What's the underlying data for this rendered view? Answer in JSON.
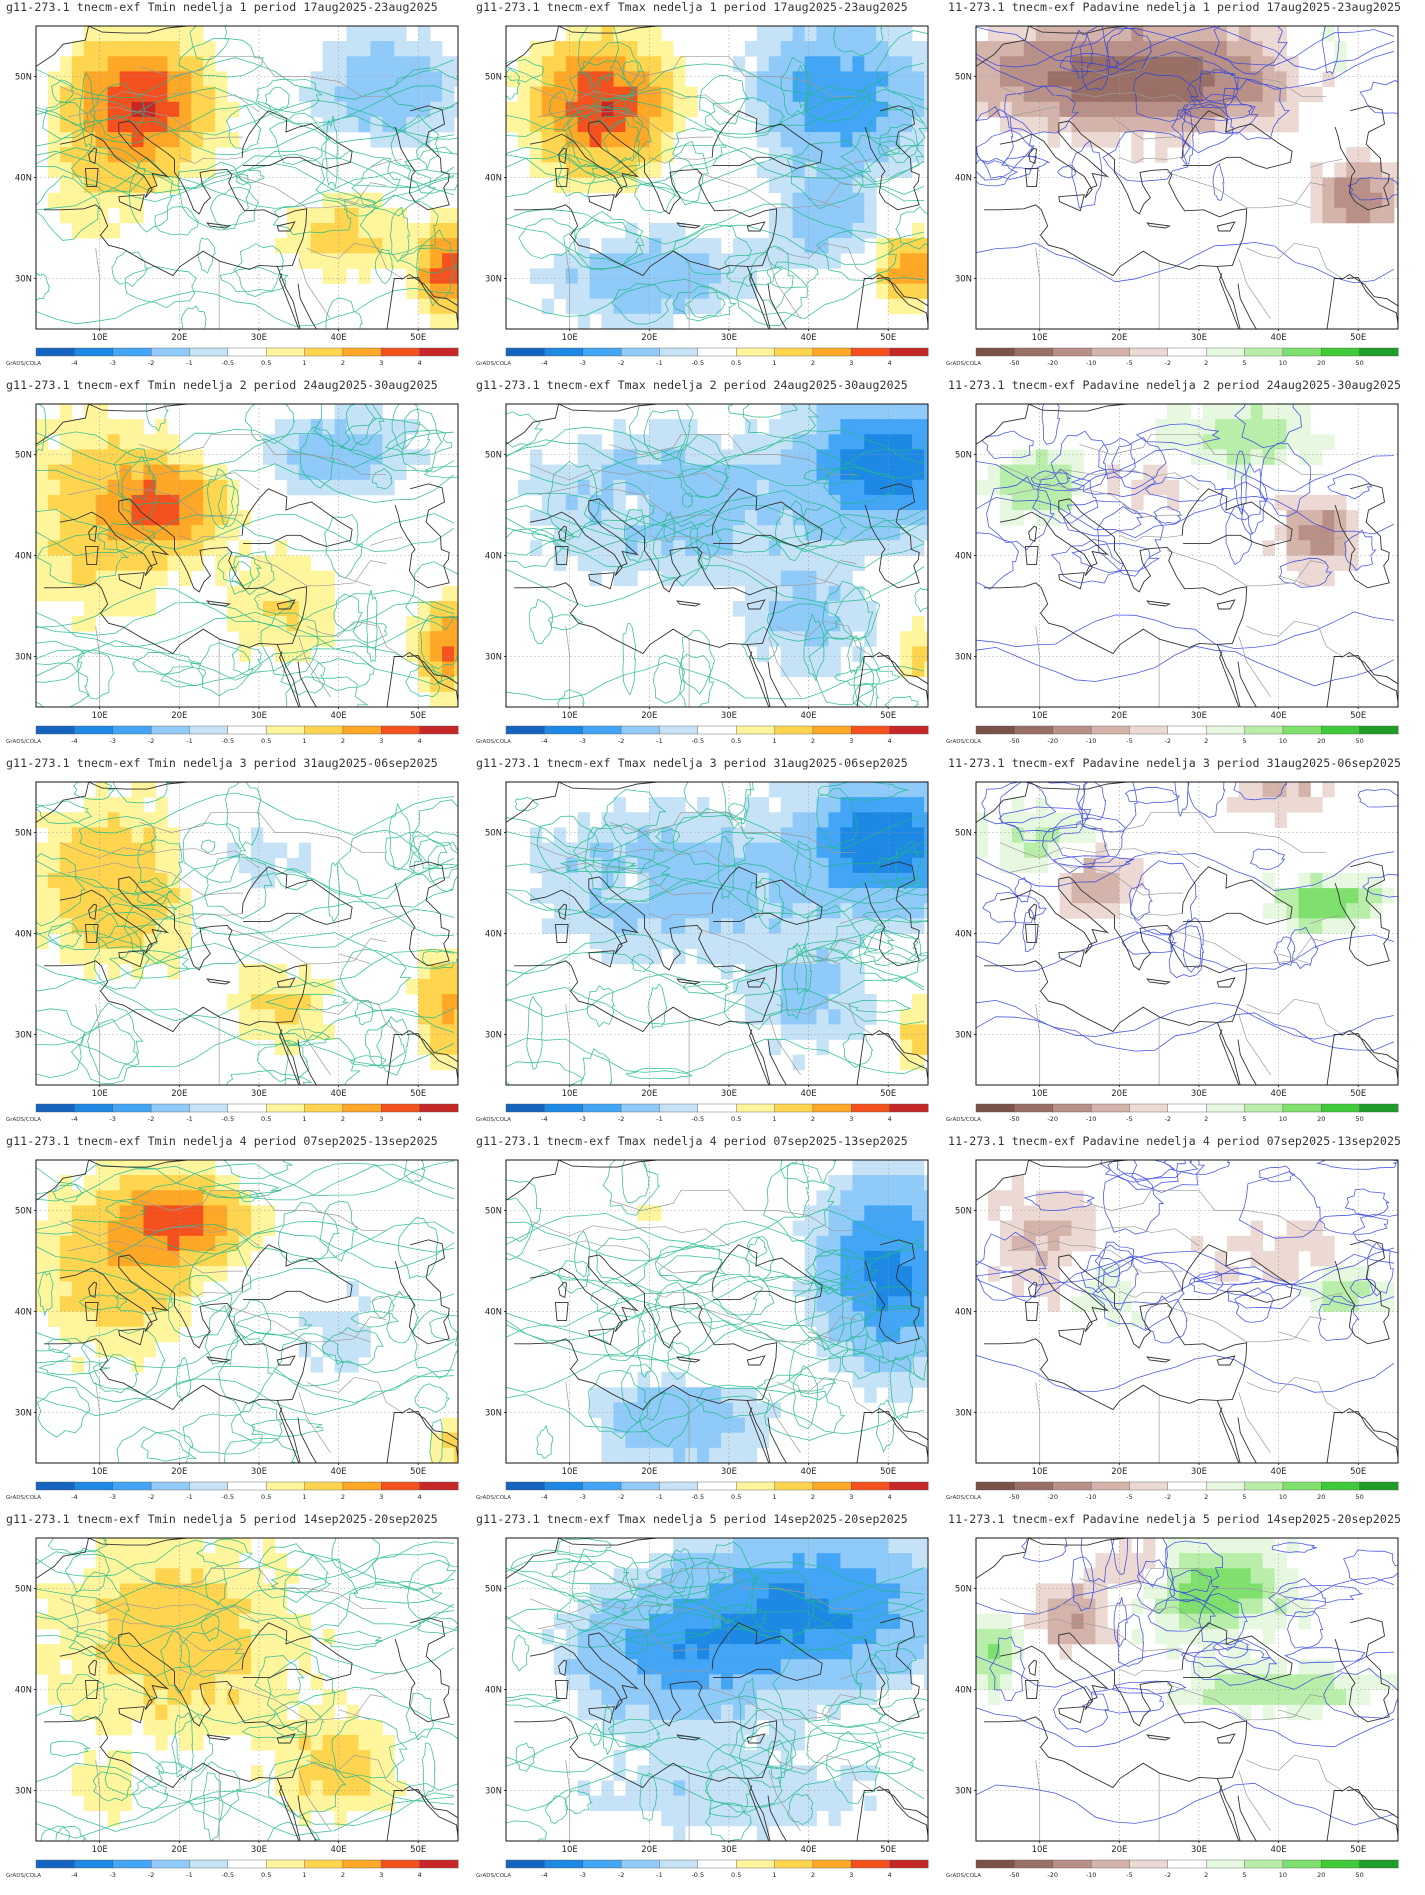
{
  "footer_label": "GrADS/COLA",
  "lon_labels": [
    "10E",
    "20E",
    "30E",
    "40E",
    "50E"
  ],
  "lat_labels": [
    "50N",
    "40N",
    "30N"
  ],
  "colorbars": {
    "temp": {
      "labels": [
        "-4",
        "-3",
        "-2",
        "-1",
        "-0.5",
        "0.5",
        "1",
        "2",
        "3",
        "4"
      ],
      "colors": [
        "#1565c0",
        "#1e88e5",
        "#42a5f5",
        "#90caf9",
        "#c6e2f7",
        "#ffffff",
        "#fff59d",
        "#ffd54f",
        "#ffa726",
        "#f4511e",
        "#c62828"
      ]
    },
    "precip": {
      "labels": [
        "-50",
        "-20",
        "-10",
        "-5",
        "-2",
        "2",
        "5",
        "10",
        "20",
        "50"
      ],
      "colors": [
        "#7b5247",
        "#9a7066",
        "#b89087",
        "#d4b3aa",
        "#ecd9d3",
        "#ffffff",
        "#e6f8e0",
        "#b9eeaa",
        "#7fe06e",
        "#3fca3a",
        "#1e9e28"
      ]
    }
  },
  "rows": [
    [
      {
        "title": "g11-273.1 tnecm-exf Tmin nedelja 1 period 17aug2025-23aug2025",
        "type": "tmin",
        "pattern": "hot-west"
      },
      {
        "title": "g11-273.1 tnecm-exf Tmax nedelja 1 period 17aug2025-23aug2025",
        "type": "tmax",
        "pattern": "hot-west-cold-east"
      },
      {
        "title": "11-273.1 tnecm-exf Padavine nedelja 1 period 17aug2025-23aug2025",
        "type": "precip",
        "pattern": "dry-north"
      }
    ],
    [
      {
        "title": "g11-273.1 tnecm-exf Tmin nedelja 2 period 24aug2025-30aug2025",
        "type": "tmin",
        "pattern": "warm-broad"
      },
      {
        "title": "g11-273.1 tnecm-exf Tmax nedelja 2 period 24aug2025-30aug2025",
        "type": "tmax",
        "pattern": "cold-northeast"
      },
      {
        "title": "11-273.1 tnecm-exf Padavine nedelja 2 period 24aug2025-30aug2025",
        "type": "precip",
        "pattern": "mixed-green"
      }
    ],
    [
      {
        "title": "g11-273.1 tnecm-exf Tmin nedelja 3 period 31aug2025-06sep2025",
        "type": "tmin",
        "pattern": "warm-west"
      },
      {
        "title": "g11-273.1 tnecm-exf Tmax nedelja 3 period 31aug2025-06sep2025",
        "type": "tmax",
        "pattern": "cold-northeast"
      },
      {
        "title": "11-273.1 tnecm-exf Padavine nedelja 3 period 31aug2025-06sep2025",
        "type": "precip",
        "pattern": "wet-east"
      }
    ],
    [
      {
        "title": "g11-273.1 tnecm-exf Tmin nedelja 4 period 07sep2025-13sep2025",
        "type": "tmin",
        "pattern": "hot-center"
      },
      {
        "title": "g11-273.1 tnecm-exf Tmax nedelja 4 period 07sep2025-13sep2025",
        "type": "tmax",
        "pattern": "cold-east-south"
      },
      {
        "title": "11-273.1 tnecm-exf Padavine nedelja 4 period 07sep2025-13sep2025",
        "type": "precip",
        "pattern": "light-mixed"
      }
    ],
    [
      {
        "title": "g11-273.1 tnecm-exf Tmin nedelja 5 period 14sep2025-20sep2025",
        "type": "tmin",
        "pattern": "warm-patchy"
      },
      {
        "title": "g11-273.1 tnecm-exf Tmax nedelja 5 period 14sep2025-20sep2025",
        "type": "tmax",
        "pattern": "cold-everywhere"
      },
      {
        "title": "11-273.1 tnecm-exf Padavine nedelja 5 period 14sep2025-20sep2025",
        "type": "precip",
        "pattern": "wet-broad"
      }
    ]
  ]
}
